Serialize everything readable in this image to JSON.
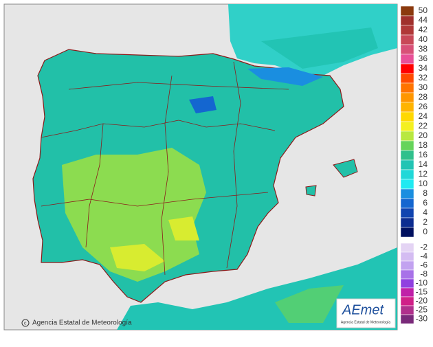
{
  "map": {
    "credit": "Agencia Estatal de Meteorología",
    "logo": {
      "name": "AEmet",
      "subtitle": "Agencia Estatal de Meteorología"
    },
    "legend_positive": [
      {
        "label": "50",
        "color": "#8b3a0e"
      },
      {
        "label": "44",
        "color": "#a0302c"
      },
      {
        "label": "42",
        "color": "#b03838"
      },
      {
        "label": "40",
        "color": "#c84858"
      },
      {
        "label": "38",
        "color": "#d85078"
      },
      {
        "label": "36",
        "color": "#e85098"
      },
      {
        "label": "34",
        "color": "#ff0000"
      },
      {
        "label": "32",
        "color": "#ff4a00"
      },
      {
        "label": "30",
        "color": "#ff7400"
      },
      {
        "label": "28",
        "color": "#ff9600"
      },
      {
        "label": "26",
        "color": "#ffb400"
      },
      {
        "label": "24",
        "color": "#ffd800"
      },
      {
        "label": "22",
        "color": "#f4f020"
      },
      {
        "label": "20",
        "color": "#b8e840"
      },
      {
        "label": "18",
        "color": "#66d45a"
      },
      {
        "label": "16",
        "color": "#30c08c"
      },
      {
        "label": "14",
        "color": "#22c4b4"
      },
      {
        "label": "12",
        "color": "#20d8d8"
      },
      {
        "label": "10",
        "color": "#20eaf2"
      },
      {
        "label": "8",
        "color": "#1a8ee0"
      },
      {
        "label": "6",
        "color": "#1466d0"
      },
      {
        "label": "4",
        "color": "#1044b0"
      },
      {
        "label": "2",
        "color": "#0c2c90"
      },
      {
        "label": "0",
        "color": "#001060"
      }
    ],
    "legend_negative": [
      {
        "label": "-2",
        "color": "#e4d4f4"
      },
      {
        "label": "-4",
        "color": "#d4bcf2"
      },
      {
        "label": "-6",
        "color": "#c2a2f0"
      },
      {
        "label": "-8",
        "color": "#a872e8"
      },
      {
        "label": "-10",
        "color": "#9040e0"
      },
      {
        "label": "-15",
        "color": "#c020a8"
      },
      {
        "label": "-20",
        "color": "#d02088"
      },
      {
        "label": "-25",
        "color": "#b0308c"
      },
      {
        "label": "-30",
        "color": "#7a2a7a"
      }
    ]
  }
}
